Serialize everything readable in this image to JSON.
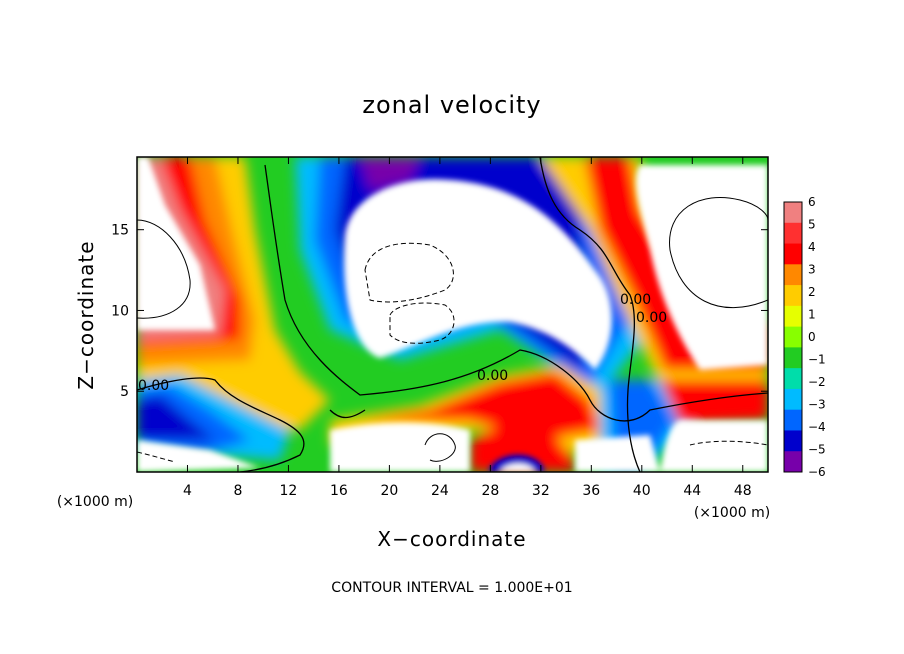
{
  "chart_data": {
    "type": "heatmap",
    "title": "zonal velocity",
    "xlabel": "X−coordinate",
    "ylabel": "Z−coordinate",
    "x_scale_note": "(×1000 m)",
    "y_scale_note": "(×1000 m)",
    "xlim": [
      0,
      50
    ],
    "ylim": [
      0,
      19.5
    ],
    "x_ticks": [
      "4",
      "8",
      "12",
      "16",
      "20",
      "24",
      "28",
      "32",
      "36",
      "40",
      "44",
      "48"
    ],
    "x_tick_values": [
      4,
      8,
      12,
      16,
      20,
      24,
      28,
      32,
      36,
      40,
      44,
      48
    ],
    "y_ticks": [
      "5",
      "10",
      "15"
    ],
    "y_tick_values": [
      5,
      10,
      15
    ],
    "colorbar": {
      "labels": [
        "6",
        "5",
        "4",
        "3",
        "2",
        "1",
        "0",
        "−1",
        "−2",
        "−3",
        "−4",
        "−5",
        "−6"
      ],
      "values": [
        6,
        5,
        4,
        3,
        2,
        1,
        0,
        -1,
        -2,
        -3,
        -4,
        -5,
        -6
      ],
      "colors": [
        "#f08080",
        "#ff3030",
        "#ff0000",
        "#ff8800",
        "#ffcc00",
        "#e6ff00",
        "#88ff00",
        "#22cc22",
        "#00ddaa",
        "#00bbff",
        "#0066ff",
        "#0000cc",
        "#7700aa"
      ]
    },
    "contour_labels": [
      "0.00",
      "0.00",
      "0.00",
      "0.00"
    ],
    "note": "CONTOUR INTERVAL = 1.000E+01"
  }
}
